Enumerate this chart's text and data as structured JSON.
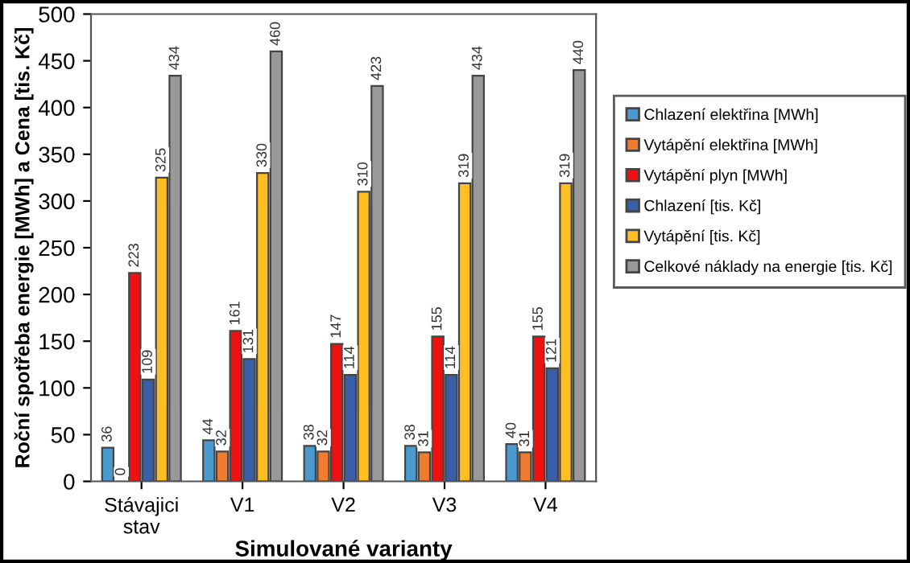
{
  "chart_data": {
    "type": "bar",
    "xlabel": "Simulované varianty",
    "ylabel": "Roční spotřeba energie [MWh] a Cena [tis. Kč]",
    "categories": [
      "Stávajici\nstav",
      "V1",
      "V2",
      "V3",
      "V4"
    ],
    "series": [
      {
        "name": "Chlazení elektřina [MWh]",
        "color": "#4a9ad0",
        "values": [
          36,
          44,
          38,
          38,
          40
        ]
      },
      {
        "name": "Vytápění elektřina [MWh]",
        "color": "#f07c30",
        "values": [
          0,
          32,
          32,
          31,
          31
        ]
      },
      {
        "name": "Vytápění plyn [MWh]",
        "color": "#ee1111",
        "values": [
          223,
          161,
          147,
          155,
          155
        ]
      },
      {
        "name": "Chlazení [tis. Kč]",
        "color": "#3a5ea8",
        "values": [
          109,
          131,
          114,
          114,
          121
        ]
      },
      {
        "name": "Vytápění [tis. Kč]",
        "color": "#ffbf22",
        "values": [
          325,
          330,
          310,
          319,
          319
        ]
      },
      {
        "name": "Celkové náklady na energie [tis. Kč]",
        "color": "#999999",
        "values": [
          434,
          460,
          423,
          434,
          440
        ]
      }
    ],
    "ylim": [
      0,
      500
    ],
    "yticks": [
      0,
      50,
      100,
      150,
      200,
      250,
      300,
      350,
      400,
      450,
      500
    ],
    "grid": false,
    "legend": "right",
    "data_labels": true
  }
}
